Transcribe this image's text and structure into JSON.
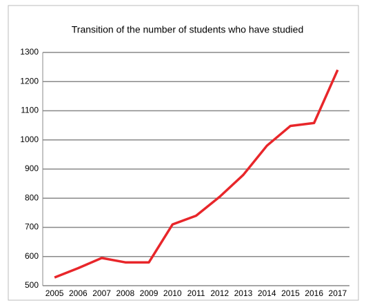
{
  "chart_data": {
    "type": "line",
    "title": "Transition of the number of students who have studied",
    "categories": [
      "2005",
      "2006",
      "2007",
      "2008",
      "2009",
      "2010",
      "2011",
      "2012",
      "2013",
      "2014",
      "2015",
      "2016",
      "2017"
    ],
    "series": [
      {
        "color": "#e8262a",
        "values": [
          528,
          560,
          595,
          580,
          580,
          710,
          740,
          805,
          880,
          980,
          1048,
          1058,
          1240
        ]
      }
    ],
    "ylim": [
      500,
      1300
    ],
    "yticks": [
      500,
      600,
      700,
      800,
      900,
      1000,
      1100,
      1200,
      1300
    ],
    "grid": true
  }
}
